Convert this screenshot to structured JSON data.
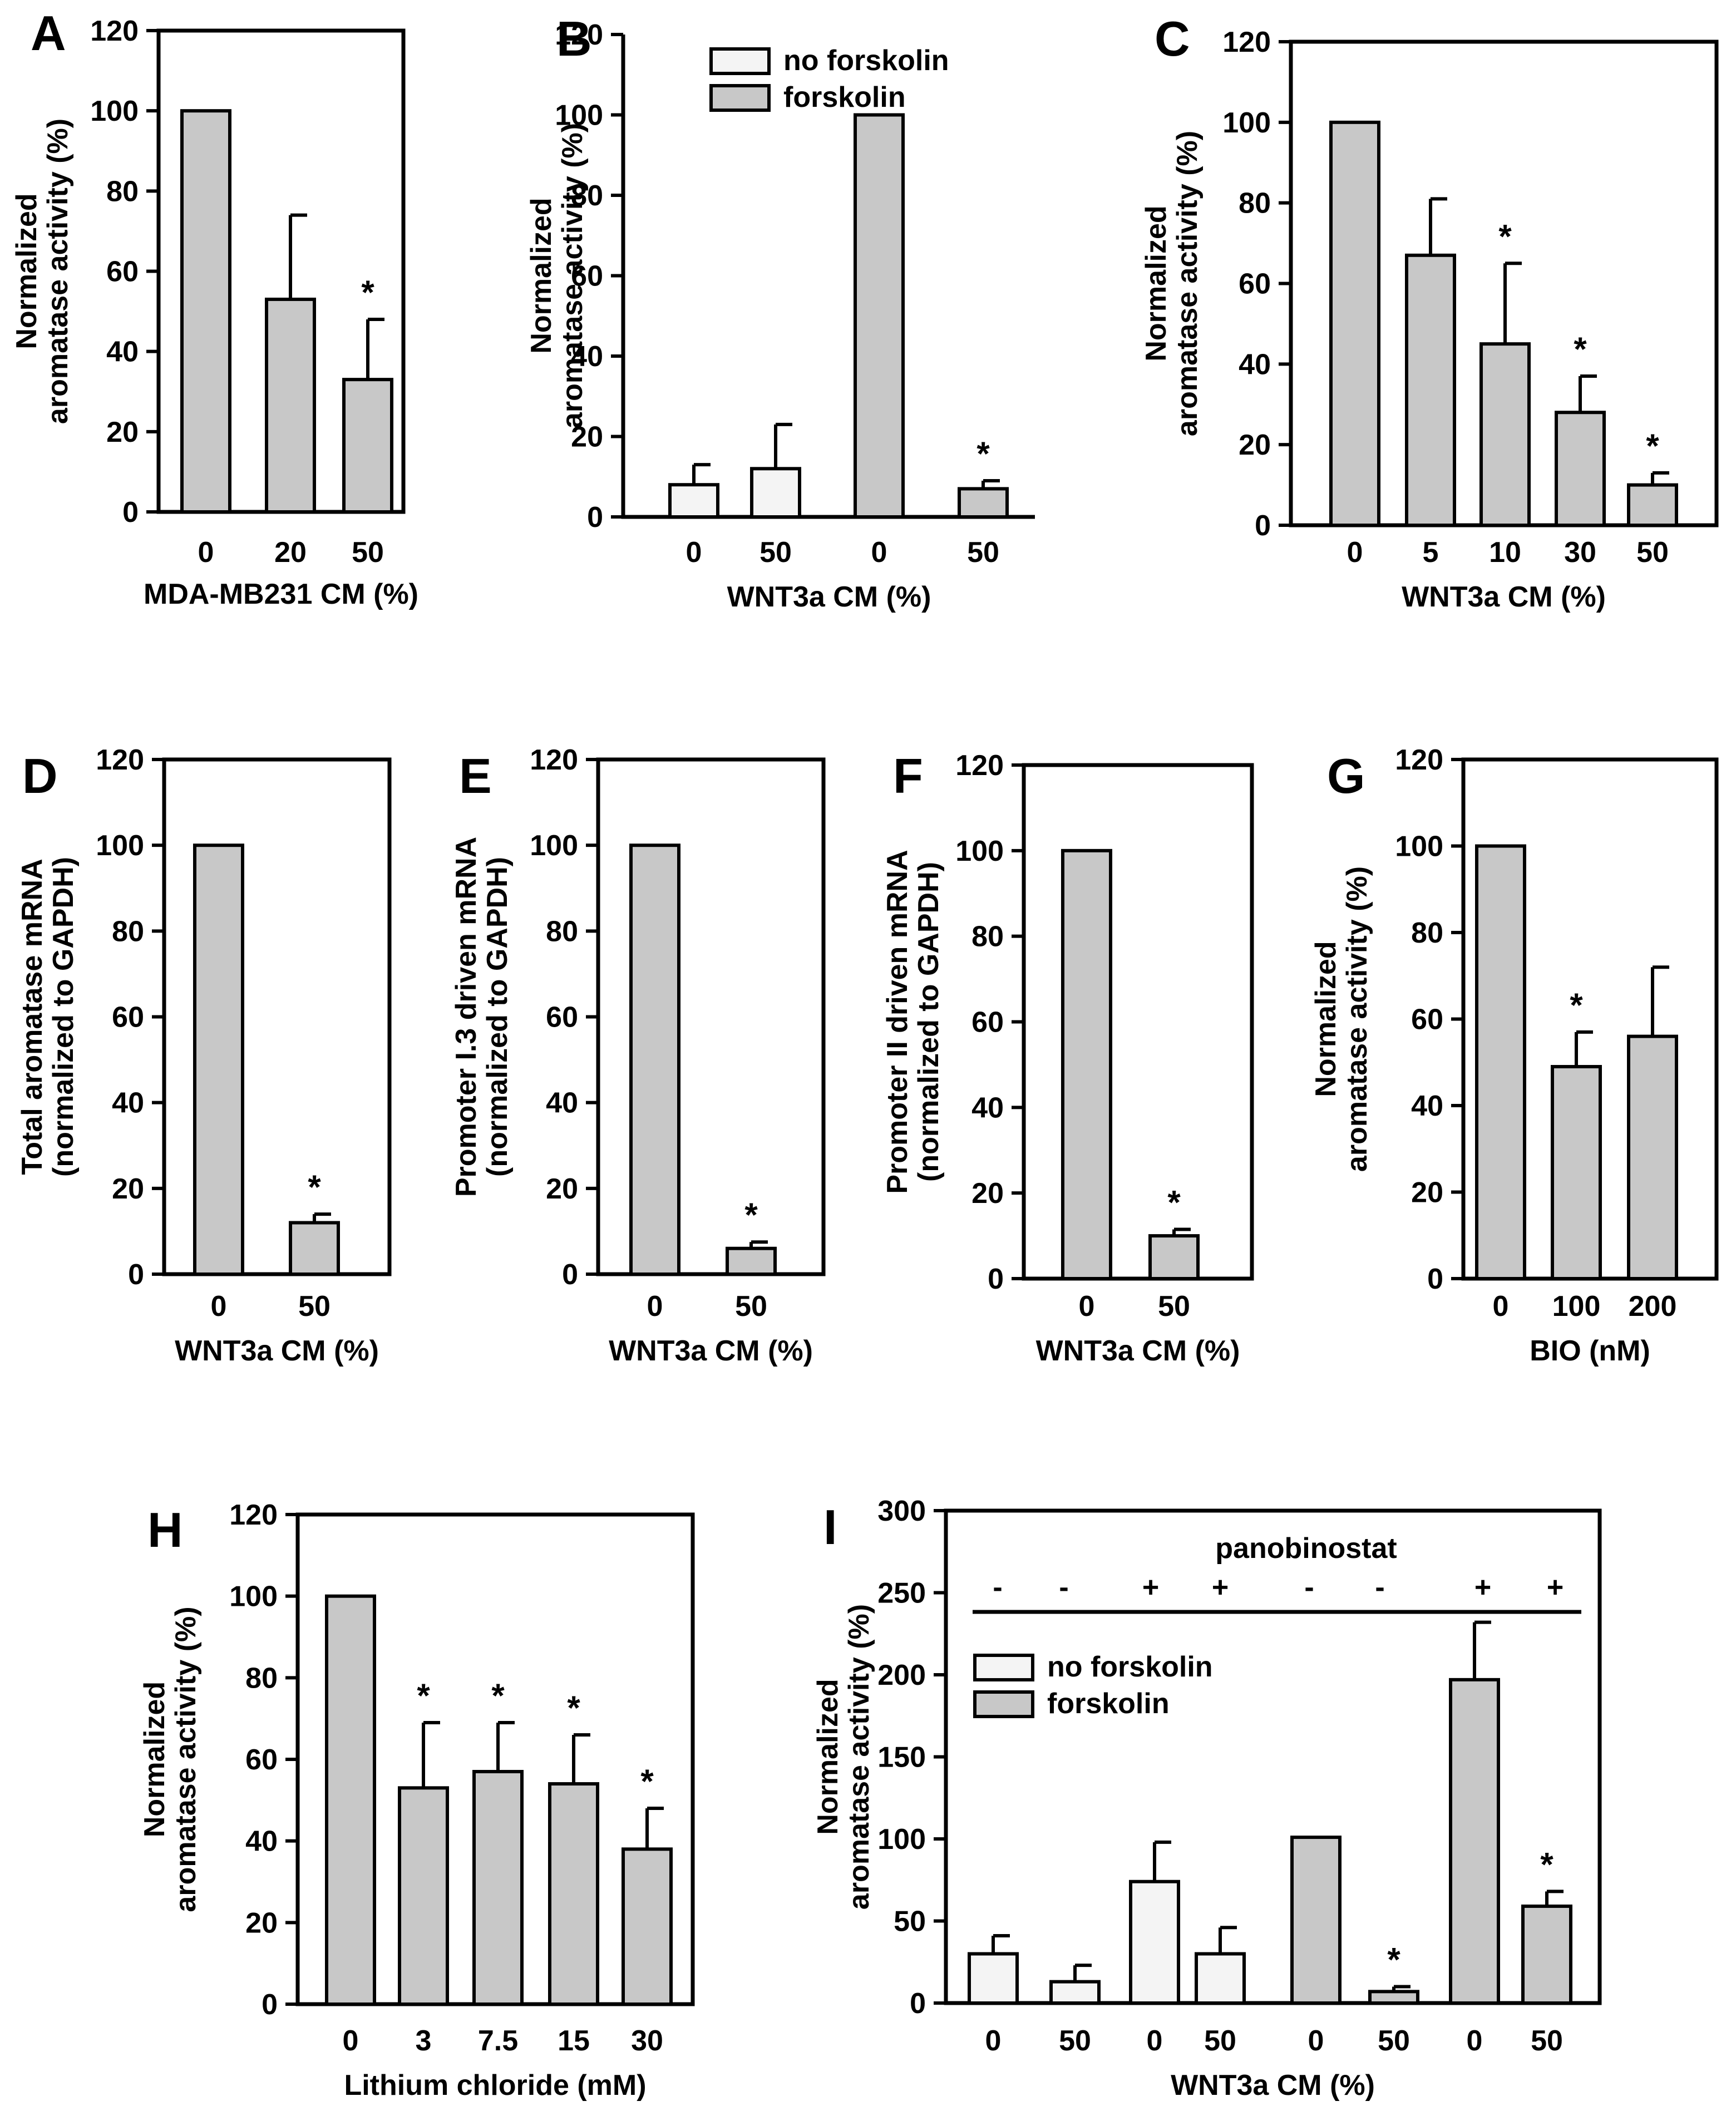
{
  "colors": {
    "gray_bar": "#c8c8c8",
    "white_bar": "#f4f4f4",
    "axis": "#000000"
  },
  "chart_data": [
    {
      "panel": "A",
      "type": "bar",
      "xlabel": "MDA-MB231 CM (%)",
      "ylabel": [
        "Normalized",
        "aromatase activity (%)"
      ],
      "ylim": [
        0,
        120
      ],
      "yticks": [
        0,
        20,
        40,
        60,
        80,
        100,
        120
      ],
      "categories": [
        "0",
        "20",
        "50"
      ],
      "values": [
        100,
        53,
        33
      ],
      "errors": [
        0,
        21,
        15
      ],
      "fills": [
        "gray",
        "gray",
        "gray"
      ],
      "significance": [
        "",
        "",
        "*"
      ]
    },
    {
      "panel": "B",
      "type": "bar",
      "xlabel": "WNT3a CM (%)",
      "ylabel": [
        "Normalized",
        "aromatase activity (%)"
      ],
      "ylim": [
        0,
        120
      ],
      "yticks": [
        0,
        20,
        40,
        60,
        80,
        100,
        120
      ],
      "categories": [
        "0",
        "50",
        "0",
        "50"
      ],
      "values": [
        8,
        12,
        100,
        7
      ],
      "errors": [
        5,
        11,
        0,
        2
      ],
      "fills": [
        "white",
        "white",
        "gray",
        "gray"
      ],
      "significance": [
        "",
        "",
        "",
        "*"
      ],
      "legend": [
        {
          "label": "no forskolin",
          "fill": "white"
        },
        {
          "label": "forskolin",
          "fill": "gray"
        }
      ],
      "legend_position": "top-left"
    },
    {
      "panel": "C",
      "type": "bar",
      "xlabel": "WNT3a CM (%)",
      "ylabel": [
        "Normalized",
        "aromatase activity (%)"
      ],
      "ylim": [
        0,
        120
      ],
      "yticks": [
        0,
        20,
        40,
        60,
        80,
        100,
        120
      ],
      "categories": [
        "0",
        "5",
        "10",
        "30",
        "50"
      ],
      "values": [
        100,
        67,
        45,
        28,
        10
      ],
      "errors": [
        0,
        14,
        20,
        9,
        3
      ],
      "fills": [
        "gray",
        "gray",
        "gray",
        "gray",
        "gray"
      ],
      "significance": [
        "",
        "",
        "*",
        "*",
        "*"
      ]
    },
    {
      "panel": "D",
      "type": "bar",
      "xlabel": "WNT3a CM (%)",
      "ylabel": [
        "Total aromatase mRNA",
        "(normalized to GAPDH)"
      ],
      "ylim": [
        0,
        120
      ],
      "yticks": [
        0,
        20,
        40,
        60,
        80,
        100,
        120
      ],
      "categories": [
        "0",
        "50"
      ],
      "values": [
        100,
        12
      ],
      "errors": [
        0,
        2
      ],
      "fills": [
        "gray",
        "gray"
      ],
      "significance": [
        "",
        "*"
      ]
    },
    {
      "panel": "E",
      "type": "bar",
      "xlabel": "WNT3a CM (%)",
      "ylabel": [
        "Promoter I.3 driven mRNA",
        "(normalized to GAPDH)"
      ],
      "ylim": [
        0,
        120
      ],
      "yticks": [
        0,
        20,
        40,
        60,
        80,
        100,
        120
      ],
      "categories": [
        "0",
        "50"
      ],
      "values": [
        100,
        6
      ],
      "errors": [
        0,
        1.5
      ],
      "fills": [
        "gray",
        "gray"
      ],
      "significance": [
        "",
        "*"
      ]
    },
    {
      "panel": "F",
      "type": "bar",
      "xlabel": "WNT3a CM (%)",
      "ylabel": [
        "Promoter II driven mRNA",
        "(normalized to GAPDH)"
      ],
      "ylim": [
        0,
        120
      ],
      "yticks": [
        0,
        20,
        40,
        60,
        80,
        100,
        120
      ],
      "categories": [
        "0",
        "50"
      ],
      "values": [
        100,
        10
      ],
      "errors": [
        0,
        1.5
      ],
      "fills": [
        "gray",
        "gray"
      ],
      "significance": [
        "",
        "*"
      ]
    },
    {
      "panel": "G",
      "type": "bar",
      "xlabel": "BIO (nM)",
      "ylabel": [
        "Normalized",
        "aromatase activity (%)"
      ],
      "ylim": [
        0,
        120
      ],
      "yticks": [
        0,
        20,
        40,
        60,
        80,
        100,
        120
      ],
      "categories": [
        "0",
        "100",
        "200"
      ],
      "values": [
        100,
        49,
        56
      ],
      "errors": [
        0,
        8,
        16
      ],
      "fills": [
        "gray",
        "gray",
        "gray"
      ],
      "significance": [
        "",
        "*",
        ""
      ]
    },
    {
      "panel": "H",
      "type": "bar",
      "xlabel": "Lithium chloride (mM)",
      "ylabel": [
        "Normalized",
        "aromatase activity (%)"
      ],
      "ylim": [
        0,
        120
      ],
      "yticks": [
        0,
        20,
        40,
        60,
        80,
        100,
        120
      ],
      "categories": [
        "0",
        "3",
        "7.5",
        "15",
        "30"
      ],
      "values": [
        100,
        53,
        57,
        54,
        38
      ],
      "errors": [
        0,
        16,
        12,
        12,
        10
      ],
      "fills": [
        "gray",
        "gray",
        "gray",
        "gray",
        "gray"
      ],
      "significance": [
        "",
        "*",
        "*",
        "*",
        "*"
      ]
    },
    {
      "panel": "I",
      "type": "bar",
      "xlabel": "WNT3a CM (%)",
      "ylabel": [
        "Normalized",
        "aromatase activity (%)"
      ],
      "ylim": [
        0,
        300
      ],
      "yticks": [
        0,
        50,
        100,
        150,
        200,
        250,
        300
      ],
      "categories": [
        "0",
        "50",
        "0",
        "50",
        "0",
        "50",
        "0",
        "50"
      ],
      "values": [
        30,
        13,
        74,
        30,
        101,
        7,
        197,
        59
      ],
      "errors": [
        11,
        10,
        24,
        16,
        0,
        3,
        35,
        9
      ],
      "fills": [
        "white",
        "white",
        "white",
        "white",
        "gray",
        "gray",
        "gray",
        "gray"
      ],
      "significance": [
        "",
        "",
        "",
        "",
        "",
        "*",
        "",
        "*"
      ],
      "header": {
        "label": "panobinostat",
        "signs": [
          "-",
          "-",
          "+",
          "+",
          "-",
          "-",
          "+",
          "+"
        ]
      },
      "legend": [
        {
          "label": "no forskolin",
          "fill": "white"
        },
        {
          "label": "forskolin",
          "fill": "gray"
        }
      ],
      "legend_position": "upper-left"
    }
  ]
}
